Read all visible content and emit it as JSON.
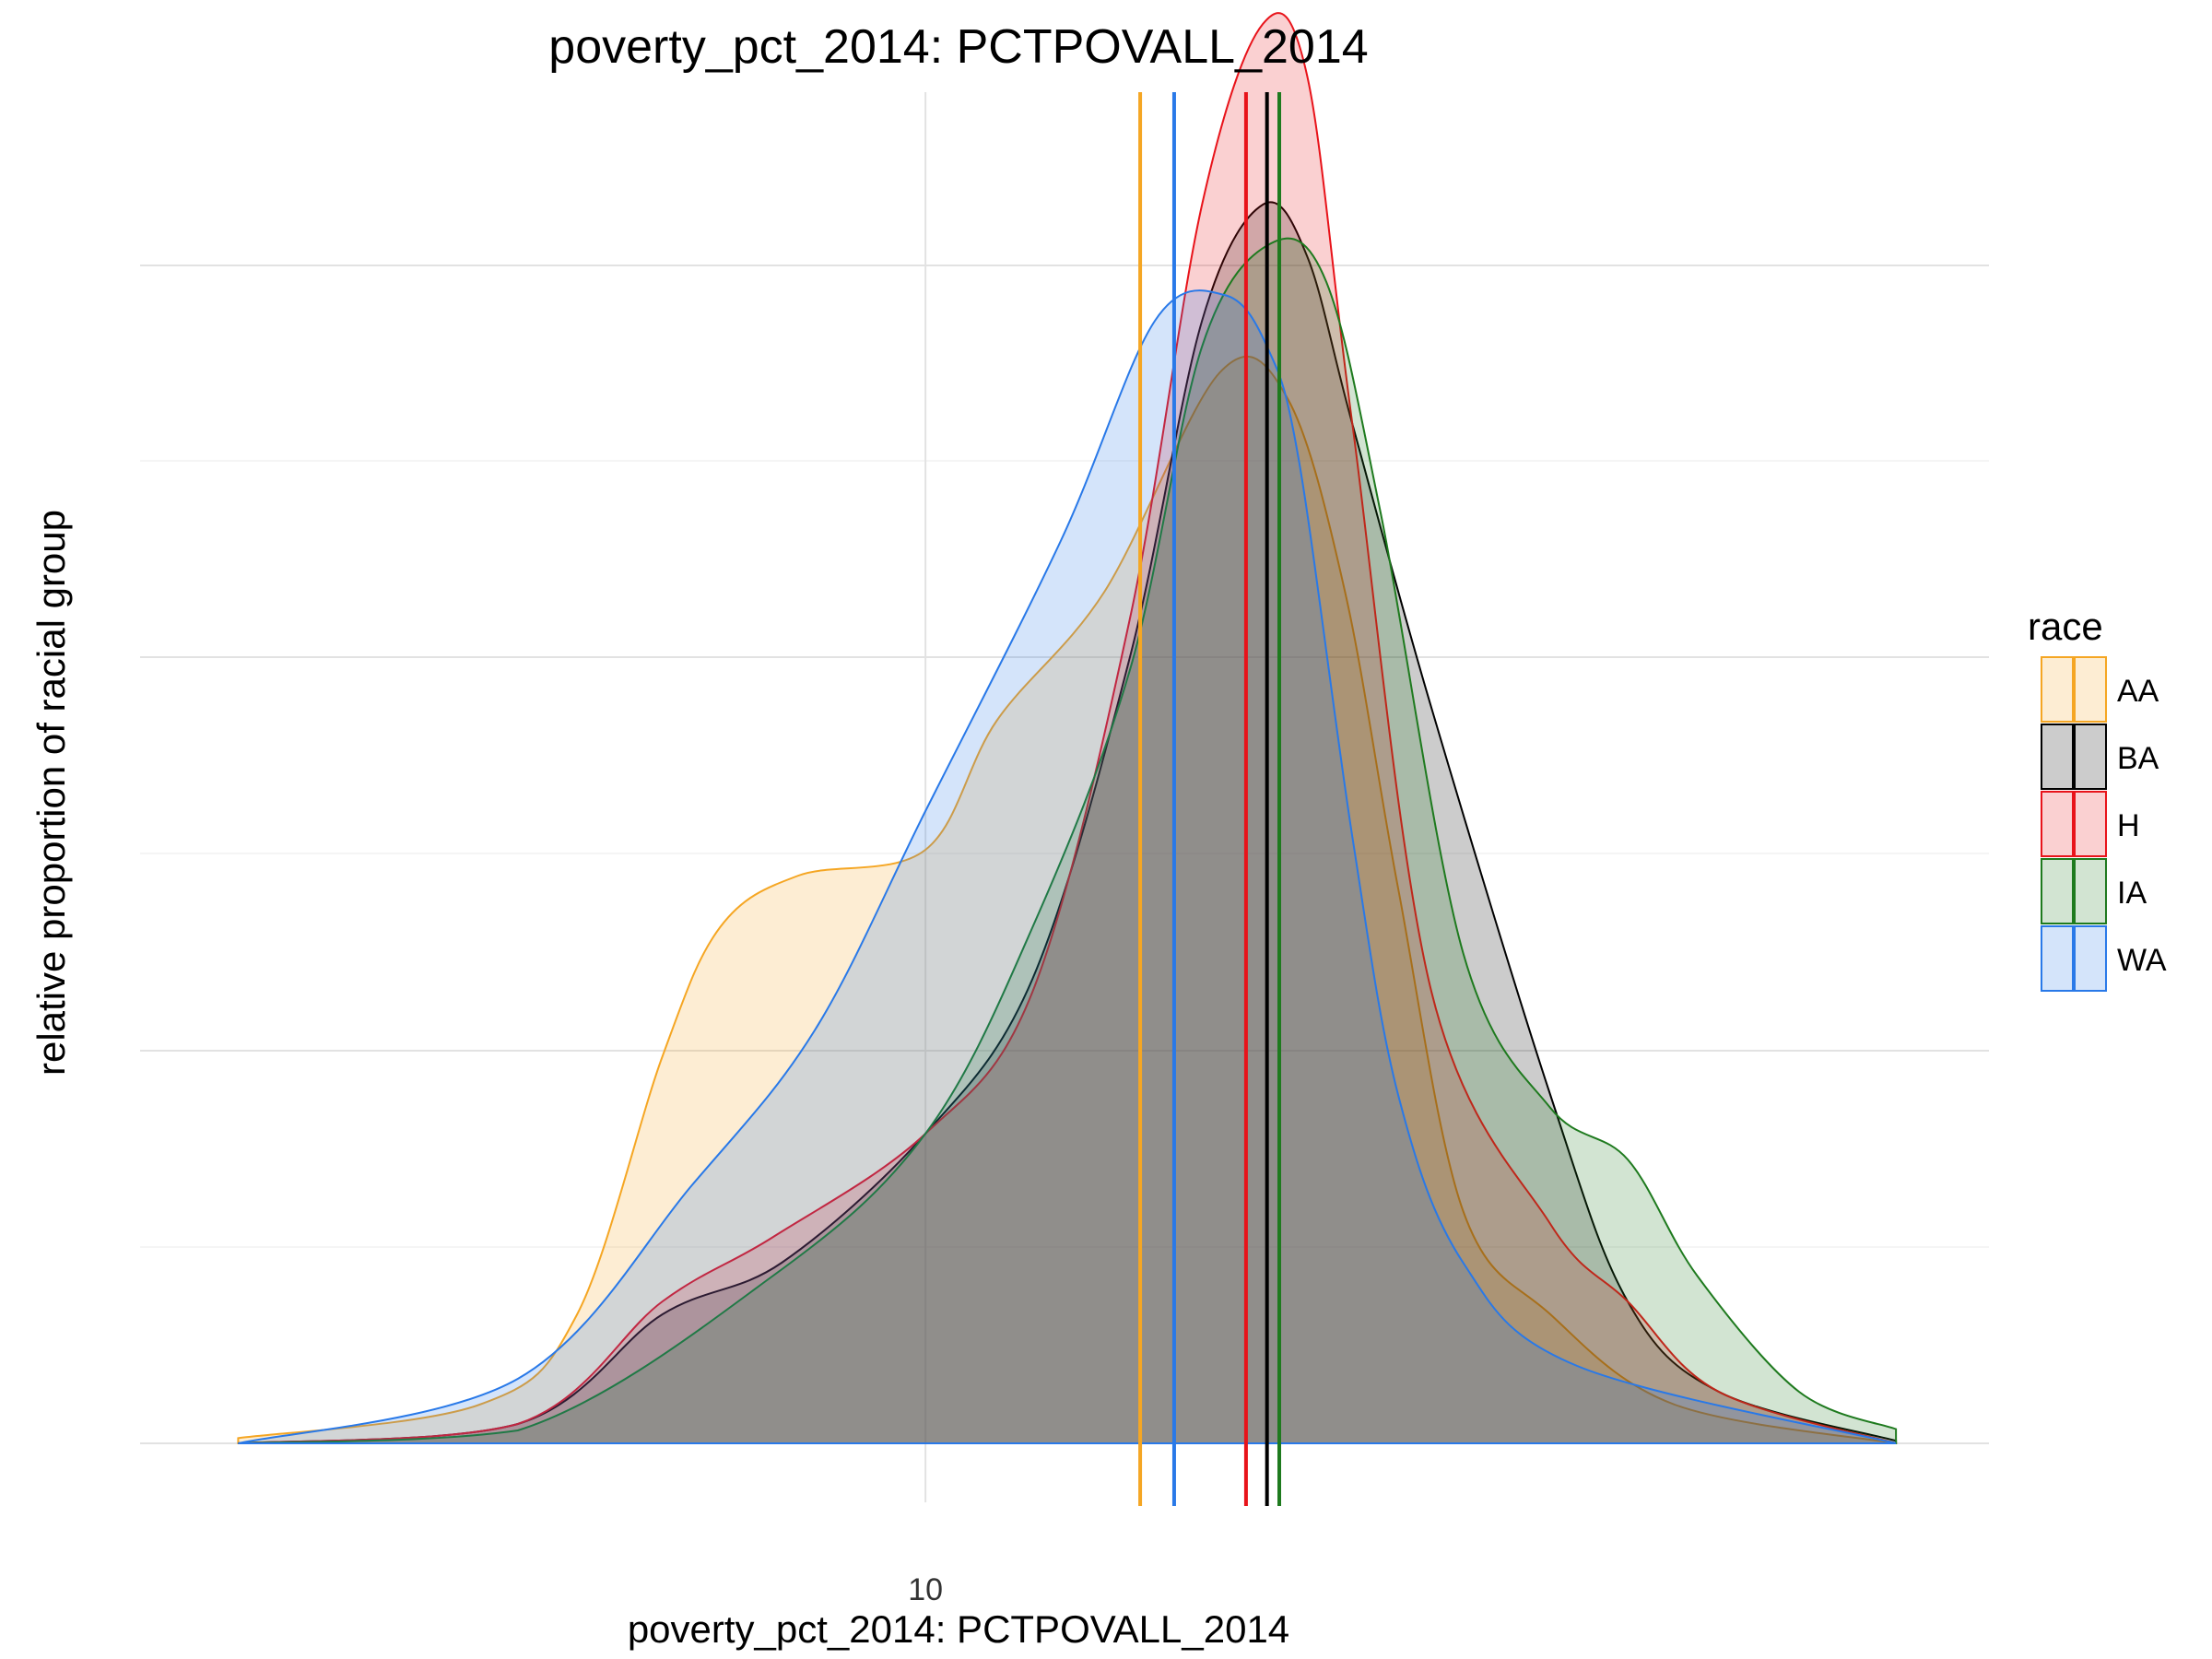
{
  "chart_data": {
    "type": "area",
    "title": "poverty_pct_2014: PCTPOVALL_2014",
    "xlabel": "poverty_pct_2014: PCTPOVALL_2014",
    "ylabel": "relative proportion of racial group",
    "x_scale": "log",
    "xlim": [
      3.57,
      42.0
    ],
    "ylim": [
      0,
      1
    ],
    "x_ticks": [
      10
    ],
    "x_tick_labels": [
      "10"
    ],
    "y_tick_labels": [],
    "grid": true,
    "legend": {
      "title": "race",
      "position": "right"
    },
    "series": [
      {
        "name": "AA",
        "color": "#F5A623",
        "fill_opacity": 0.2,
        "median": 13.7,
        "points": [
          [
            3.65,
            0.004
          ],
          [
            5.2,
            0.03
          ],
          [
            6.0,
            0.1
          ],
          [
            6.8,
            0.3
          ],
          [
            7.4,
            0.4
          ],
          [
            8.3,
            0.44
          ],
          [
            10.0,
            0.46
          ],
          [
            11.1,
            0.56
          ],
          [
            13.0,
            0.66
          ],
          [
            15.4,
            0.83
          ],
          [
            17.0,
            0.81
          ],
          [
            18.5,
            0.66
          ],
          [
            20.0,
            0.43
          ],
          [
            22.0,
            0.18
          ],
          [
            25.0,
            0.1
          ],
          [
            30.0,
            0.03
          ],
          [
            41.5,
            0.0
          ]
        ]
      },
      {
        "name": "BA",
        "color": "#000000",
        "fill_opacity": 0.2,
        "median": 16.5,
        "points": [
          [
            3.65,
            0.0
          ],
          [
            5.5,
            0.015
          ],
          [
            6.8,
            0.1
          ],
          [
            8.1,
            0.14
          ],
          [
            10.0,
            0.24
          ],
          [
            11.7,
            0.36
          ],
          [
            13.5,
            0.61
          ],
          [
            15.0,
            0.87
          ],
          [
            16.4,
            0.96
          ],
          [
            17.5,
            0.92
          ],
          [
            18.7,
            0.79
          ],
          [
            21.0,
            0.57
          ],
          [
            25.0,
            0.27
          ],
          [
            28.0,
            0.11
          ],
          [
            32.0,
            0.04
          ],
          [
            41.5,
            0.002
          ]
        ]
      },
      {
        "name": "H",
        "color": "#E8131A",
        "fill_opacity": 0.2,
        "median": 16.0,
        "points": [
          [
            3.65,
            0.0
          ],
          [
            5.5,
            0.015
          ],
          [
            6.8,
            0.11
          ],
          [
            8.0,
            0.16
          ],
          [
            10.0,
            0.24
          ],
          [
            11.7,
            0.35
          ],
          [
            13.5,
            0.64
          ],
          [
            15.0,
            0.96
          ],
          [
            16.4,
            1.1
          ],
          [
            17.5,
            1.06
          ],
          [
            18.7,
            0.79
          ],
          [
            21.0,
            0.35
          ],
          [
            25.0,
            0.17
          ],
          [
            28.0,
            0.11
          ],
          [
            32.0,
            0.04
          ],
          [
            41.5,
            0.0
          ]
        ]
      },
      {
        "name": "IA",
        "color": "#1E7A1E",
        "fill_opacity": 0.2,
        "median": 16.8,
        "points": [
          [
            3.65,
            0.0
          ],
          [
            5.5,
            0.01
          ],
          [
            8.0,
            0.13
          ],
          [
            10.0,
            0.24
          ],
          [
            11.7,
            0.4
          ],
          [
            13.5,
            0.6
          ],
          [
            15.0,
            0.85
          ],
          [
            16.6,
            0.93
          ],
          [
            18.0,
            0.9
          ],
          [
            19.5,
            0.72
          ],
          [
            22.0,
            0.38
          ],
          [
            25.0,
            0.26
          ],
          [
            28.0,
            0.22
          ],
          [
            31.0,
            0.13
          ],
          [
            36.0,
            0.04
          ],
          [
            41.5,
            0.011
          ]
        ]
      },
      {
        "name": "WA",
        "color": "#2979E8",
        "fill_opacity": 0.2,
        "median": 14.4,
        "points": [
          [
            3.65,
            0.0
          ],
          [
            5.5,
            0.05
          ],
          [
            7.1,
            0.2
          ],
          [
            8.5,
            0.32
          ],
          [
            10.0,
            0.49
          ],
          [
            12.2,
            0.7
          ],
          [
            14.0,
            0.87
          ],
          [
            15.5,
            0.89
          ],
          [
            16.5,
            0.85
          ],
          [
            17.3,
            0.76
          ],
          [
            18.7,
            0.47
          ],
          [
            20.0,
            0.27
          ],
          [
            22.0,
            0.14
          ],
          [
            26.0,
            0.06
          ],
          [
            41.5,
            0.0
          ]
        ]
      }
    ]
  }
}
